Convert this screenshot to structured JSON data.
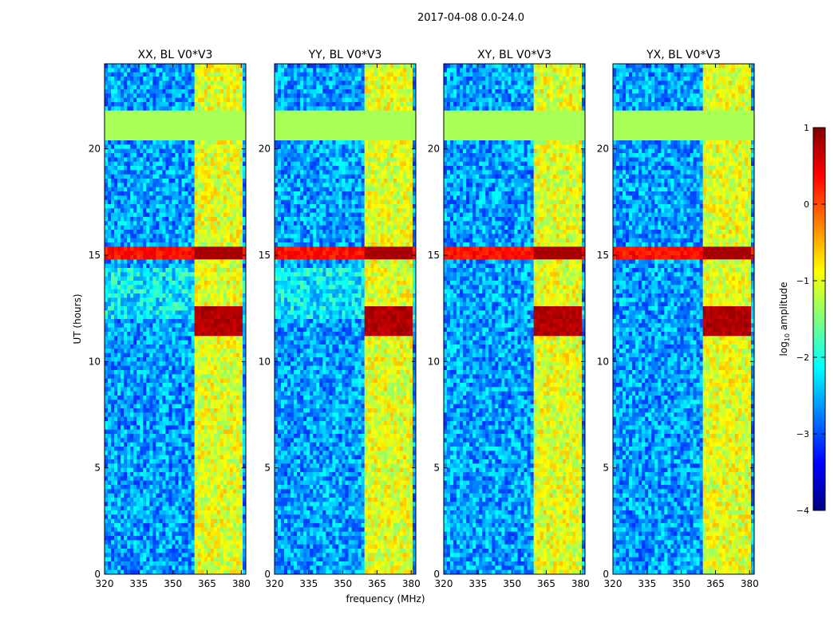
{
  "figure": {
    "suptitle": "2017-04-08 0.0-24.0",
    "xlabel": "frequency (MHz)",
    "ylabel": "UT (hours)"
  },
  "colorbar": {
    "label_prefix": "log",
    "label_sub": "10",
    "label_suffix": " amplitude",
    "range": [
      -4,
      1
    ],
    "ticks": [
      1,
      0,
      -1,
      -2,
      -3,
      -4
    ],
    "tick_labels": [
      "1",
      "0",
      "−1",
      "−2",
      "−3",
      "−4"
    ],
    "colormap": "jet",
    "colors": [
      "#00007f",
      "#0000ff",
      "#007fff",
      "#00ffff",
      "#7fff7f",
      "#ffff00",
      "#ff7f00",
      "#ff0000",
      "#7f0000"
    ]
  },
  "chart_data": [
    {
      "type": "heatmap",
      "title": "XX, BL V0*V3",
      "xlim": [
        320,
        382
      ],
      "ylim": [
        0,
        24
      ],
      "xticks": [
        320,
        335,
        350,
        365,
        380
      ],
      "yticks": [
        0,
        5,
        10,
        15,
        20
      ],
      "notable_features": {
        "flag_band_hours": [
          20.5,
          21.7
        ],
        "rfi_band_hours": [
          14.8,
          15.4
        ],
        "bright_band_hours": [
          11.3,
          12.6
        ],
        "bright_freq_mhz": [
          359.5,
          380
        ]
      }
    },
    {
      "type": "heatmap",
      "title": "YY, BL V0*V3",
      "xlim": [
        320,
        382
      ],
      "ylim": [
        0,
        24
      ],
      "xticks": [
        320,
        335,
        350,
        365,
        380
      ],
      "yticks": [
        0,
        5,
        10,
        15,
        20
      ],
      "notable_features": {
        "flag_band_hours": [
          20.5,
          21.7
        ],
        "rfi_band_hours": [
          14.8,
          15.4
        ],
        "bright_band_hours": [
          11.3,
          12.6
        ],
        "bright_freq_mhz": [
          359.5,
          380
        ]
      }
    },
    {
      "type": "heatmap",
      "title": "XY, BL V0*V3",
      "xlim": [
        320,
        382
      ],
      "ylim": [
        0,
        24
      ],
      "xticks": [
        320,
        335,
        350,
        365,
        380
      ],
      "yticks": [
        0,
        5,
        10,
        15,
        20
      ],
      "notable_features": {
        "flag_band_hours": [
          20.5,
          21.7
        ],
        "rfi_band_hours": [
          14.8,
          15.4
        ],
        "bright_band_hours": [
          11.3,
          12.6
        ],
        "bright_freq_mhz": [
          359.5,
          380
        ]
      }
    },
    {
      "type": "heatmap",
      "title": "YX, BL V0*V3",
      "xlim": [
        320,
        382
      ],
      "ylim": [
        0,
        24
      ],
      "xticks": [
        320,
        335,
        350,
        365,
        380
      ],
      "yticks": [
        0,
        5,
        10,
        15,
        20
      ],
      "notable_features": {
        "flag_band_hours": [
          20.5,
          21.7
        ],
        "rfi_band_hours": [
          14.8,
          15.4
        ],
        "bright_band_hours": [
          11.3,
          12.6
        ],
        "bright_freq_mhz": [
          359.5,
          380
        ]
      }
    }
  ]
}
